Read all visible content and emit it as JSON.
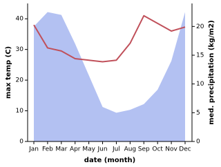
{
  "chart_data": {
    "type": "line",
    "categories": [
      "Jan",
      "Feb",
      "Mar",
      "Apr",
      "May",
      "Jun",
      "Jul",
      "Aug",
      "Sep",
      "Oct",
      "Nov",
      "Dec"
    ],
    "x_label": "date (month)",
    "y_label": "max temp (C)",
    "y2_label": "med. precipitation (kg/m2)",
    "series": [
      {
        "name": "med. precipitation",
        "type": "area",
        "axis": "y2",
        "color": "#b3c1f2",
        "values": [
          20,
          22.5,
          22,
          17,
          11.5,
          6,
          5,
          5.5,
          6.5,
          9,
          14,
          22.5
        ]
      },
      {
        "name": "max temp",
        "type": "line",
        "axis": "y",
        "color": "#c0505a",
        "values": [
          38,
          30.5,
          29.5,
          27,
          26.5,
          26,
          26.5,
          32,
          41,
          38.5,
          36,
          37.3
        ]
      }
    ],
    "ylim": [
      0,
      45
    ],
    "yticks": [
      0,
      10,
      20,
      30,
      40
    ],
    "y2lim": [
      0,
      24
    ],
    "y2ticks": [
      0,
      5,
      10,
      15,
      20
    ]
  }
}
